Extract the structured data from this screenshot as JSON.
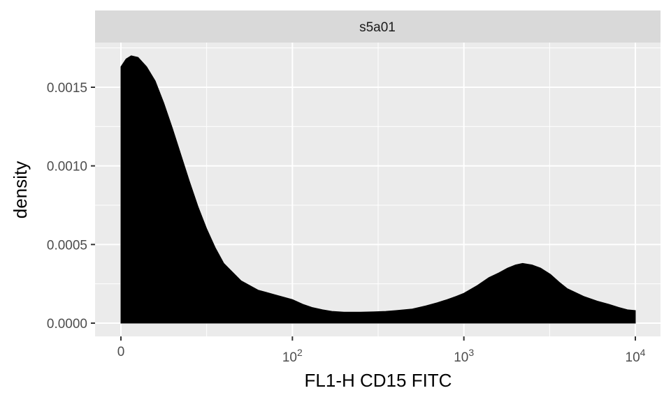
{
  "chart_data": {
    "type": "area",
    "facet_label": "s5a01",
    "xlabel": "FL1-H CD15 FITC",
    "ylabel": "density",
    "x_scale": "biexponential",
    "x_ticks": [
      {
        "value": 0,
        "base": "0",
        "exp": ""
      },
      {
        "value": 100,
        "base": "10",
        "exp": "2"
      },
      {
        "value": 1000,
        "base": "10",
        "exp": "3"
      },
      {
        "value": 10000,
        "base": "10",
        "exp": "4"
      }
    ],
    "y_ticks": [
      "0.0000",
      "0.0005",
      "0.0010",
      "0.0015"
    ],
    "ylim": [
      -7e-05,
      0.0018
    ],
    "series": [
      {
        "fill": "#000000",
        "x": [
          0,
          3,
          6,
          10,
          15,
          20,
          25,
          30,
          35,
          40,
          45,
          50,
          55,
          60,
          70,
          80,
          90,
          100,
          115,
          130,
          150,
          170,
          200,
          250,
          300,
          350,
          400,
          500,
          600,
          700,
          800,
          900,
          1000,
          1200,
          1400,
          1600,
          1800,
          2000,
          2200,
          2500,
          2800,
          3200,
          3600,
          4000,
          5000,
          6000,
          7000,
          8000,
          9000,
          10000
        ],
        "y": [
          0.00163,
          0.00168,
          0.0017,
          0.00169,
          0.00163,
          0.00154,
          0.0014,
          0.00124,
          0.00107,
          0.0009,
          0.00074,
          0.0006,
          0.00048,
          0.00038,
          0.00027,
          0.00021,
          0.00018,
          0.00015,
          0.00012,
          0.0001,
          8.5e-05,
          7.5e-05,
          7e-05,
          7e-05,
          7.2e-05,
          7.5e-05,
          8e-05,
          9e-05,
          0.00011,
          0.00013,
          0.00015,
          0.00017,
          0.00019,
          0.00024,
          0.00029,
          0.00032,
          0.00035,
          0.00037,
          0.00038,
          0.00037,
          0.00035,
          0.00031,
          0.00026,
          0.00022,
          0.00017,
          0.00014,
          0.00012,
          0.0001,
          8.5e-05,
          8e-05
        ]
      }
    ],
    "grid": true,
    "legend": "none"
  }
}
